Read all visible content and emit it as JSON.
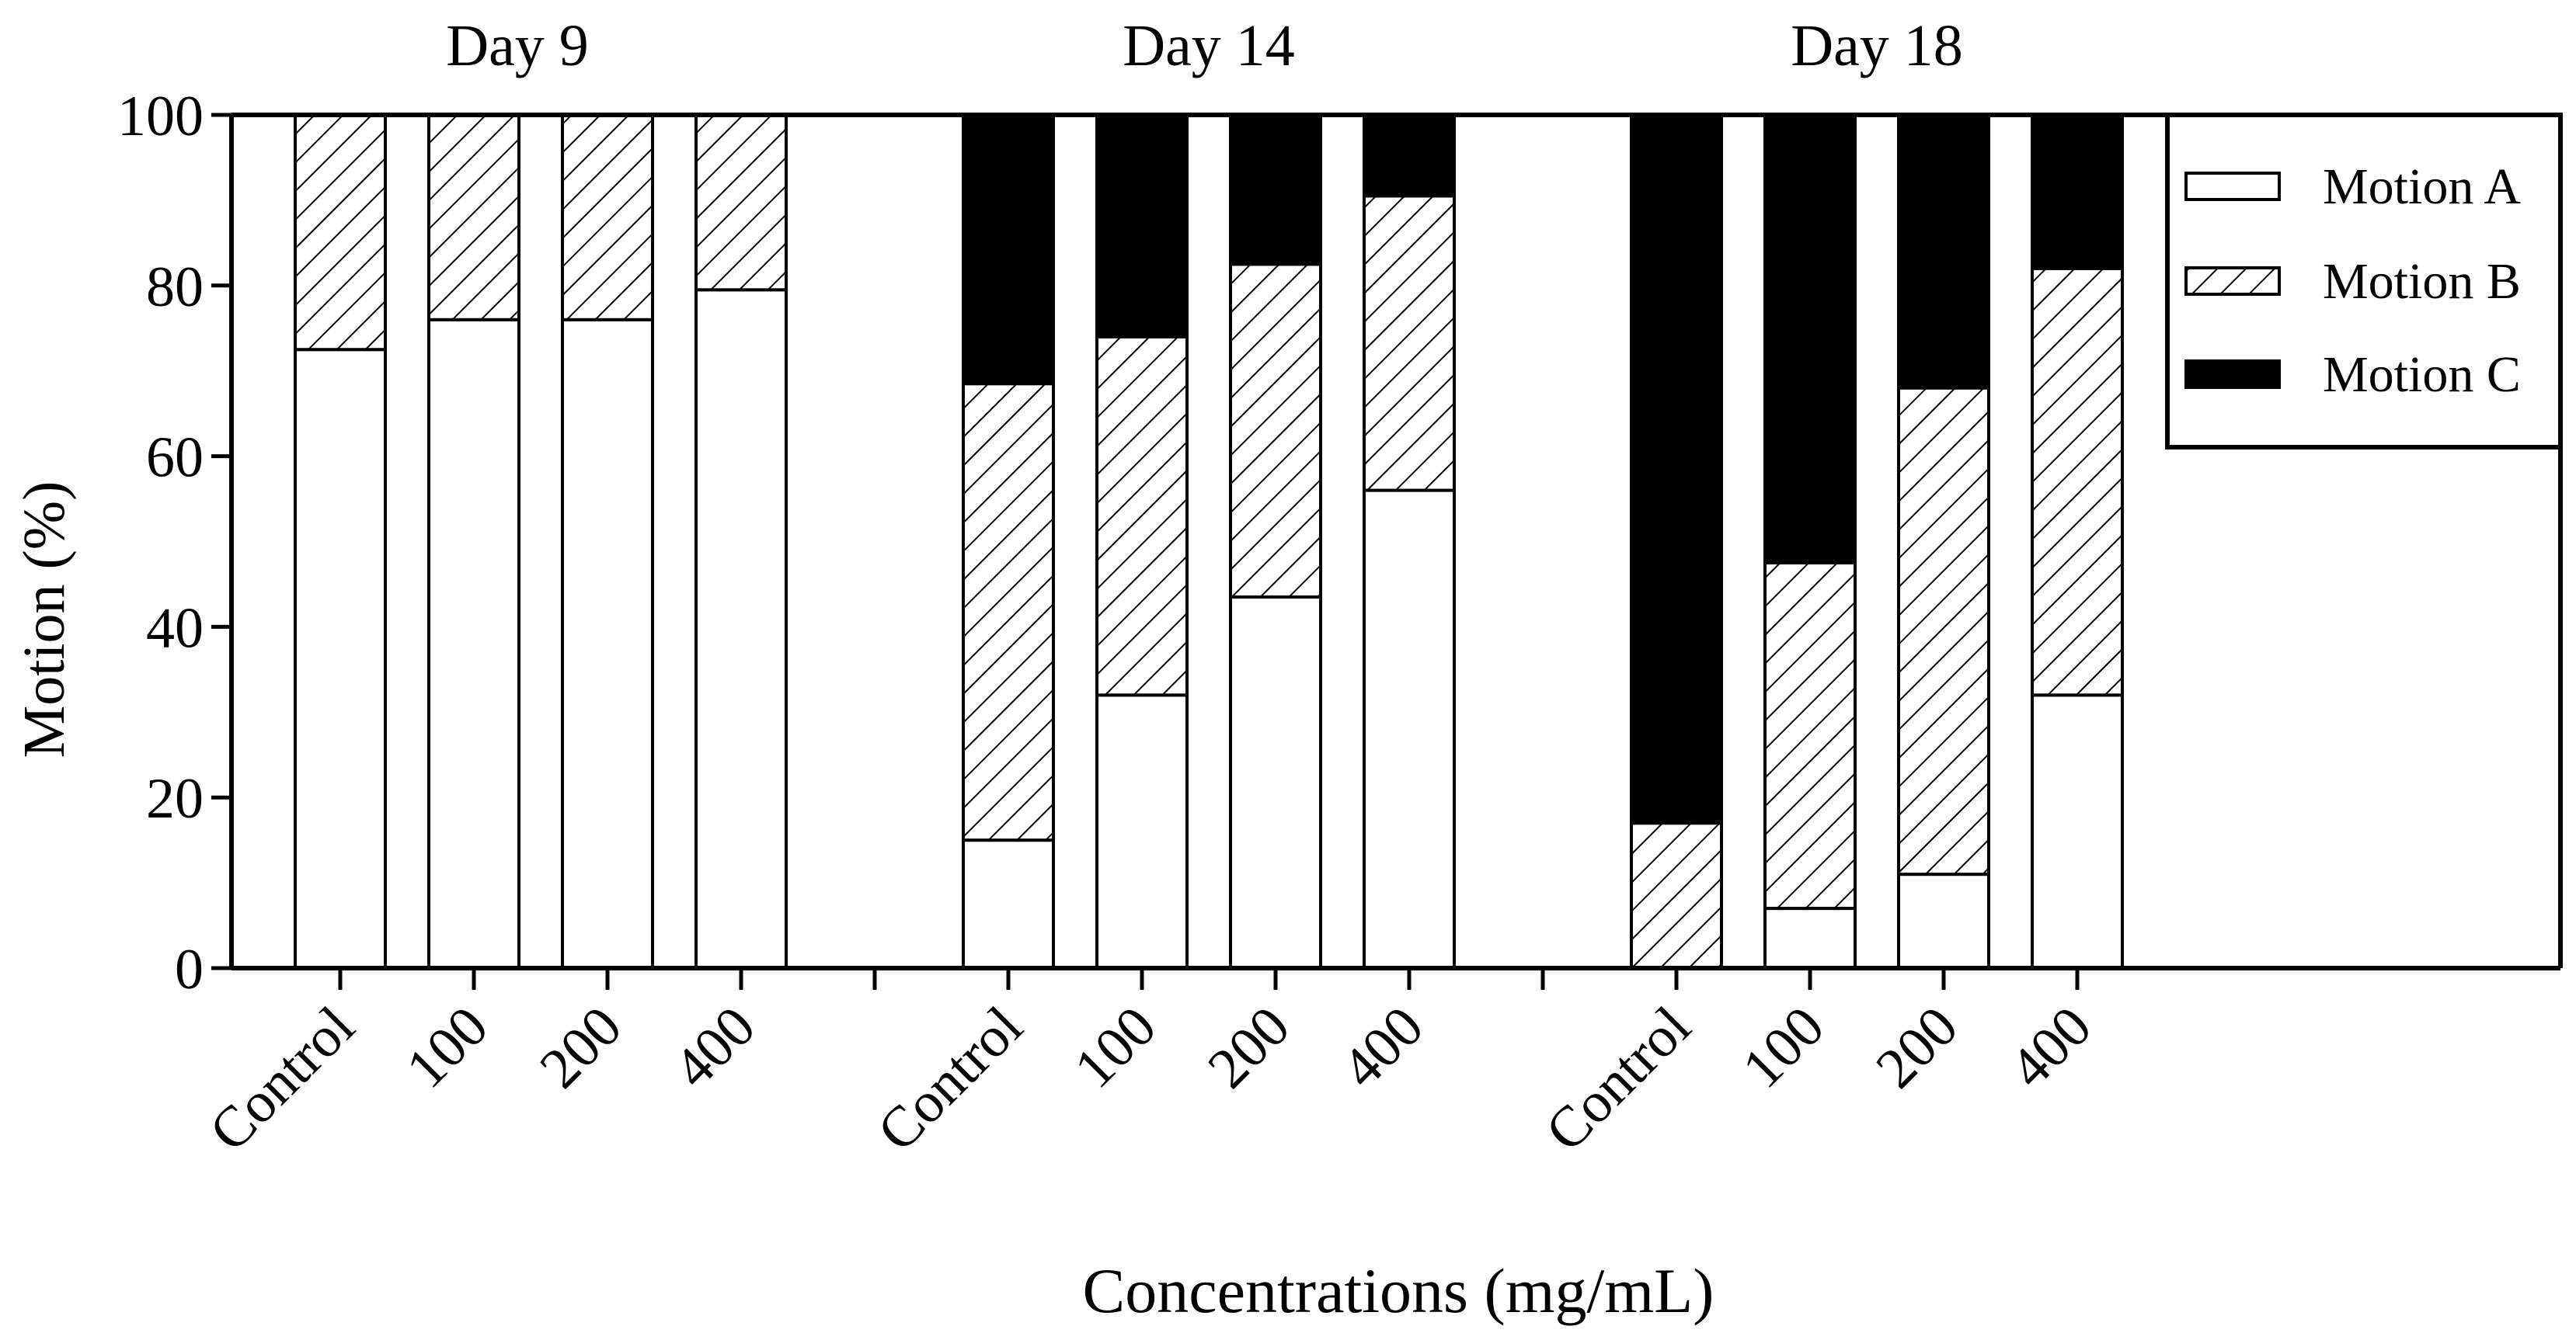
{
  "chart_data": {
    "type": "bar",
    "stacked": true,
    "title": "",
    "xlabel": "Concentrations (mg/mL)",
    "ylabel": "Motion (%)",
    "ylim": [
      0,
      100
    ],
    "yticks": [
      0,
      20,
      40,
      60,
      80,
      100
    ],
    "legend_position": "top-right",
    "groups": [
      {
        "name": "Day 9",
        "categories": [
          "Control",
          "100",
          "200",
          "400"
        ],
        "series": [
          {
            "name": "Motion A",
            "values": [
              72.5,
              76,
              76,
              79.5
            ]
          },
          {
            "name": "Motion B",
            "values": [
              27.5,
              24,
              24,
              20.5
            ]
          },
          {
            "name": "Motion C",
            "values": [
              0,
              0,
              0,
              0
            ]
          }
        ]
      },
      {
        "name": "Day 14",
        "categories": [
          "Control",
          "100",
          "200",
          "400"
        ],
        "series": [
          {
            "name": "Motion A",
            "values": [
              15,
              32,
              43.5,
              56
            ]
          },
          {
            "name": "Motion B",
            "values": [
              53.5,
              42,
              39,
              34.5
            ]
          },
          {
            "name": "Motion C",
            "values": [
              31.5,
              26,
              17.5,
              9.5
            ]
          }
        ]
      },
      {
        "name": "Day 18",
        "categories": [
          "Control",
          "100",
          "200",
          "400"
        ],
        "series": [
          {
            "name": "Motion A",
            "values": [
              0,
              7,
              11,
              32
            ]
          },
          {
            "name": "Motion B",
            "values": [
              17,
              40.5,
              57,
              50
            ]
          },
          {
            "name": "Motion C",
            "values": [
              83,
              52.5,
              32,
              18
            ]
          }
        ]
      }
    ],
    "legend": [
      {
        "name": "Motion A",
        "fill": "white"
      },
      {
        "name": "Motion B",
        "fill": "hatch"
      },
      {
        "name": "Motion C",
        "fill": "black"
      }
    ]
  },
  "colors": {
    "motion_a": "#ffffff",
    "motion_b_hatch": "#000000",
    "motion_c": "#000000",
    "axis": "#000000"
  }
}
